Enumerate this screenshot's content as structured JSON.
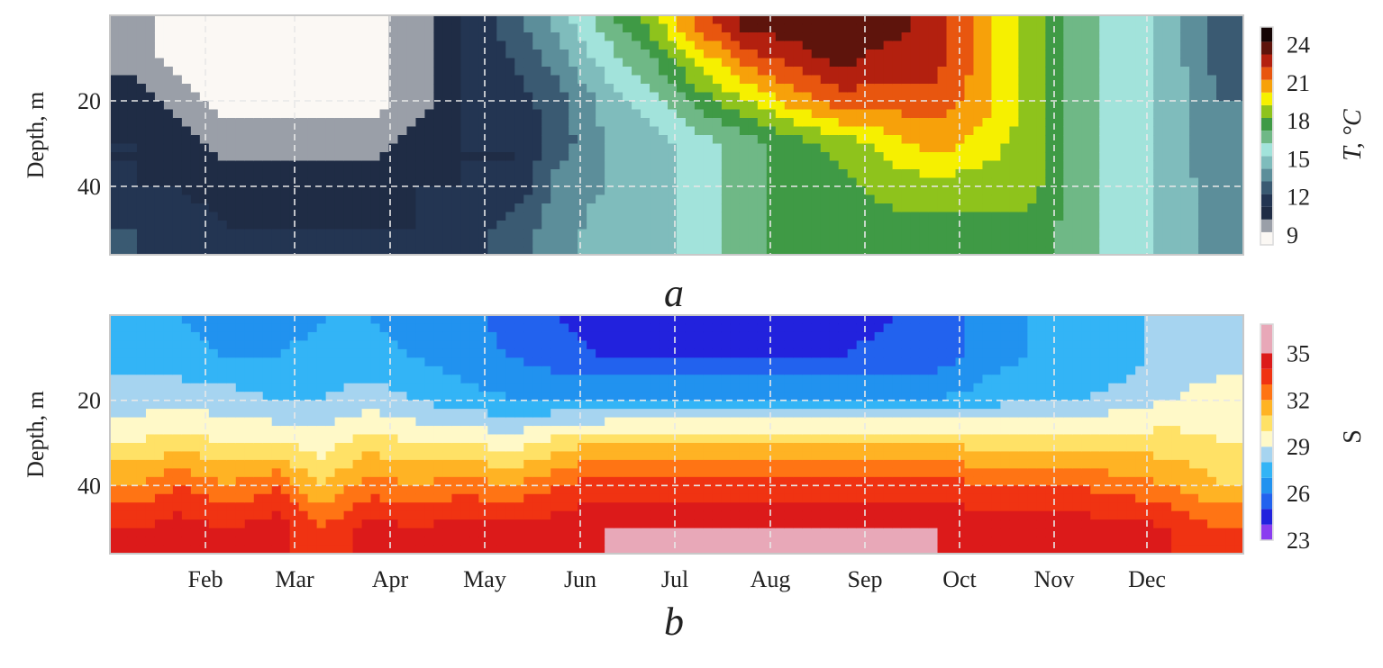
{
  "chart_data": [
    {
      "type": "heatmap",
      "panel_label": "a",
      "ylabel": "Depth, m",
      "yticks": [
        20,
        40
      ],
      "ylim": [
        56,
        0
      ],
      "x_tick_labels": [],
      "colorbar": {
        "label": "T, °C",
        "ticks": [
          9,
          12,
          15,
          18,
          21,
          24
        ],
        "range": [
          9,
          25
        ],
        "colors": [
          "#fbf8f4",
          "#9a9fa8",
          "#1f2c45",
          "#233552",
          "#3a5a72",
          "#5c8e9a",
          "#7fbcbc",
          "#a2e3db",
          "#6fb886",
          "#3f9a45",
          "#8ec31c",
          "#f6f000",
          "#f7a10a",
          "#e8560f",
          "#b3200f",
          "#5e140c",
          "#150505"
        ]
      },
      "x_resolution": "half-month (Jan 1st half … Dec 2nd half)",
      "depths": [
        2,
        10,
        20,
        30,
        40,
        50
      ],
      "values": [
        [
          10.5,
          10.5,
          11.5,
          12,
          12,
          13
        ],
        [
          9.5,
          9.5,
          10.5,
          11.5,
          12,
          12.5
        ],
        [
          9.5,
          9.5,
          9.5,
          10.5,
          11.5,
          12
        ],
        [
          9.5,
          9.5,
          9.5,
          10.5,
          11.5,
          12
        ],
        [
          9.5,
          9.5,
          9.5,
          10.5,
          11.5,
          12
        ],
        [
          9.5,
          9.5,
          9.5,
          10.5,
          11.5,
          12
        ],
        [
          10.5,
          10.5,
          10.5,
          11.5,
          12,
          12
        ],
        [
          12,
          12,
          12,
          12,
          12,
          12.5
        ],
        [
          13.5,
          13,
          12.5,
          12,
          12,
          13.5
        ],
        [
          15.5,
          14.5,
          13.5,
          13.5,
          14.5,
          14.5
        ],
        [
          17.5,
          16.5,
          15.5,
          15,
          15,
          15.5
        ],
        [
          19.5,
          18,
          16.5,
          15.5,
          15.5,
          15.5
        ],
        [
          22.5,
          20.5,
          18.5,
          16.5,
          16.5,
          16.5
        ],
        [
          24.5,
          22.5,
          20,
          17.5,
          17.5,
          17.5
        ],
        [
          24.5,
          23.5,
          21.5,
          18.5,
          18.5,
          18.5
        ],
        [
          24.5,
          24.5,
          22.5,
          19.5,
          18.5,
          18.5
        ],
        [
          24.5,
          23.5,
          22.5,
          20.5,
          19.5,
          18.5
        ],
        [
          23.5,
          23.5,
          22.5,
          21.5,
          19.5,
          18.5
        ],
        [
          21.5,
          21.5,
          21.5,
          20.5,
          19.5,
          18.5
        ],
        [
          19.5,
          19.5,
          19.5,
          19.5,
          19.5,
          18.5
        ],
        [
          17.5,
          17.5,
          17.5,
          17.5,
          17.5,
          17.5
        ],
        [
          16.5,
          16.5,
          16.5,
          16.5,
          16.5,
          16.5
        ],
        [
          15.5,
          15.5,
          15.5,
          15.5,
          15.5,
          15.5
        ],
        [
          13.5,
          13.5,
          14,
          14,
          14.5,
          14.5
        ]
      ]
    },
    {
      "type": "heatmap",
      "panel_label": "b",
      "ylabel": "Depth, m",
      "yticks": [
        20,
        40
      ],
      "ylim": [
        56,
        0
      ],
      "x_tick_labels": [
        "Feb",
        "Mar",
        "Apr",
        "May",
        "Jun",
        "Jul",
        "Aug",
        "Sep",
        "Oct",
        "Nov",
        "Dec"
      ],
      "colorbar": {
        "label": "S",
        "ticks": [
          23,
          26,
          29,
          32,
          35
        ],
        "range": [
          23,
          36
        ],
        "colors": [
          "#8a3cf0",
          "#2222dd",
          "#2262ee",
          "#2192ef",
          "#33b4f6",
          "#a6d4f0",
          "#fff9c8",
          "#ffe166",
          "#ffb324",
          "#ff7414",
          "#f03312",
          "#dc1a1a",
          "#e8a8b8"
        ]
      },
      "x_resolution": "half-month (Jan 1st half … Dec 2nd half)",
      "depths": [
        2,
        10,
        20,
        30,
        40,
        50
      ],
      "values": [
        [
          27,
          27.5,
          28.5,
          30,
          32,
          34
        ],
        [
          27,
          27.5,
          28.5,
          30.5,
          33,
          34.5
        ],
        [
          26.5,
          27,
          28.5,
          30,
          32,
          34
        ],
        [
          26.5,
          27,
          28,
          30,
          33,
          34.5
        ],
        [
          27,
          27.5,
          28,
          29.5,
          31,
          33
        ],
        [
          27,
          27.5,
          28.5,
          30.5,
          32.5,
          34.5
        ],
        [
          26.5,
          27,
          28,
          30,
          32,
          34
        ],
        [
          26.5,
          26.5,
          27.5,
          30,
          32.5,
          34.5
        ],
        [
          25.5,
          26,
          27,
          29.5,
          32,
          34.5
        ],
        [
          25,
          25.5,
          27,
          30.5,
          33,
          34.5
        ],
        [
          24.5,
          25,
          27,
          31,
          33.5,
          35
        ],
        [
          24.5,
          25,
          27,
          31,
          33.5,
          35
        ],
        [
          24.5,
          25,
          27,
          31,
          33.5,
          35
        ],
        [
          24.5,
          25,
          27,
          31,
          33.5,
          35
        ],
        [
          24.5,
          25,
          27,
          31,
          33.5,
          35
        ],
        [
          24.5,
          25,
          27,
          31,
          33.5,
          35
        ],
        [
          25,
          25.5,
          27,
          31,
          33.5,
          35
        ],
        [
          25,
          25.5,
          27,
          31,
          33.5,
          35
        ],
        [
          26.5,
          26.5,
          27.5,
          30.5,
          33,
          34.5
        ],
        [
          27,
          27,
          28,
          30.5,
          33,
          34.5
        ],
        [
          27,
          27,
          28,
          30.5,
          33,
          34.5
        ],
        [
          27.5,
          27.5,
          28.5,
          30.5,
          32.5,
          34.5
        ],
        [
          28.5,
          28.5,
          29,
          30.5,
          32,
          34
        ],
        [
          28.5,
          28.5,
          29.5,
          30,
          31,
          33
        ]
      ]
    }
  ]
}
